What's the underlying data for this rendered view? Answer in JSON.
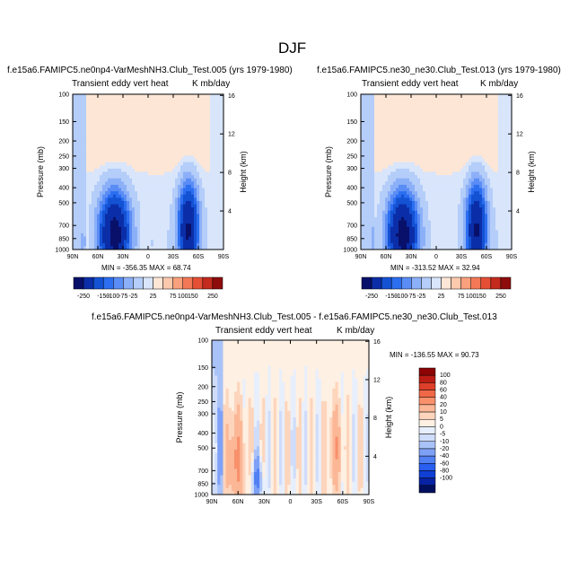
{
  "figure": {
    "title": "DJF"
  },
  "colors": {
    "cb_main": [
      "#08106a",
      "#0b2ea8",
      "#1452d4",
      "#2c6ef0",
      "#5a8cf5",
      "#8cb0f8",
      "#b4cdf9",
      "#d8e5fb",
      "#fde6d6",
      "#fcc9ad",
      "#f9a07c",
      "#f27856",
      "#e44f35",
      "#c42a1e",
      "#8f0c0c"
    ],
    "cb_diff": [
      "#000f5e",
      "#0723a3",
      "#103fd4",
      "#2a5ef0",
      "#5180f3",
      "#7ea1f6",
      "#a9c2f8",
      "#cfdcfa",
      "#e8effc",
      "#fef0e2",
      "#fdd5bc",
      "#fbb796",
      "#f8906c",
      "#f06848",
      "#dd3f2a",
      "#bb1d15",
      "#8c0404"
    ]
  },
  "chart_data": [
    {
      "type": "heatmap",
      "id": "p1",
      "title": "f.e15a6.FAMIPC5.ne0np4-VarMeshNH3.Club_Test.005 (yrs 1979-1980)",
      "left_label": "Transient eddy vert heat",
      "right_label": "K mb/day",
      "ylabel": "Pressure (mb)",
      "ylabel_right": "Height (km)",
      "x_ticks": [
        "90N",
        "60N",
        "30N",
        "0",
        "30S",
        "60S",
        "90S"
      ],
      "y_ticks": [
        "100",
        "150",
        "200",
        "250",
        "300",
        "400",
        "500",
        "700",
        "850",
        "1000"
      ],
      "y_ticks_right": [
        "16",
        "12",
        "8",
        "4"
      ],
      "stats": "MIN = -356.35  MAX =  68.74",
      "colorbar_labels": [
        "-250",
        "-150",
        "-100",
        "-75",
        "-25",
        "25",
        "75",
        "100",
        "150",
        "250"
      ],
      "y_scale": "log"
    },
    {
      "type": "heatmap",
      "id": "p2",
      "title": "f.e15a6.FAMIPC5.ne30_ne30.Club_Test.013 (yrs 1979-1980)",
      "left_label": "Transient eddy vert heat",
      "right_label": "K mb/day",
      "ylabel": "Pressure (mb)",
      "ylabel_right": "Height (km)",
      "x_ticks": [
        "90N",
        "60N",
        "30N",
        "0",
        "30S",
        "60S",
        "90S"
      ],
      "y_ticks": [
        "100",
        "150",
        "200",
        "250",
        "300",
        "400",
        "500",
        "700",
        "850",
        "1000"
      ],
      "y_ticks_right": [
        "16",
        "12",
        "8",
        "4"
      ],
      "stats": "MIN = -313.52  MAX =  32.94",
      "colorbar_labels": [
        "-250",
        "-150",
        "-100",
        "-75",
        "-25",
        "25",
        "75",
        "100",
        "150",
        "250"
      ],
      "y_scale": "log"
    },
    {
      "type": "heatmap",
      "id": "p3",
      "title": "f.e15a6.FAMIPC5.ne0np4-VarMeshNH3.Club_Test.005 - f.e15a6.FAMIPC5.ne30_ne30.Club_Test.013",
      "left_label": "Transient eddy vert heat",
      "right_label": "K mb/day",
      "ylabel": "Pressure (mb)",
      "ylabel_right": "Height (km)",
      "x_ticks": [
        "90N",
        "60N",
        "30N",
        "0",
        "30S",
        "60S",
        "90S"
      ],
      "y_ticks": [
        "100",
        "150",
        "200",
        "250",
        "300",
        "400",
        "500",
        "700",
        "850",
        "1000"
      ],
      "y_ticks_right": [
        "16",
        "12",
        "8",
        "4"
      ],
      "stats": "MIN = -136.55  MAX =  90.73",
      "colorbar_labels": [
        "100",
        "80",
        "60",
        "40",
        "20",
        "10",
        "5",
        "0",
        "-5",
        "-10",
        "-20",
        "-40",
        "-60",
        "-80",
        "-100"
      ],
      "y_scale": "log"
    }
  ]
}
